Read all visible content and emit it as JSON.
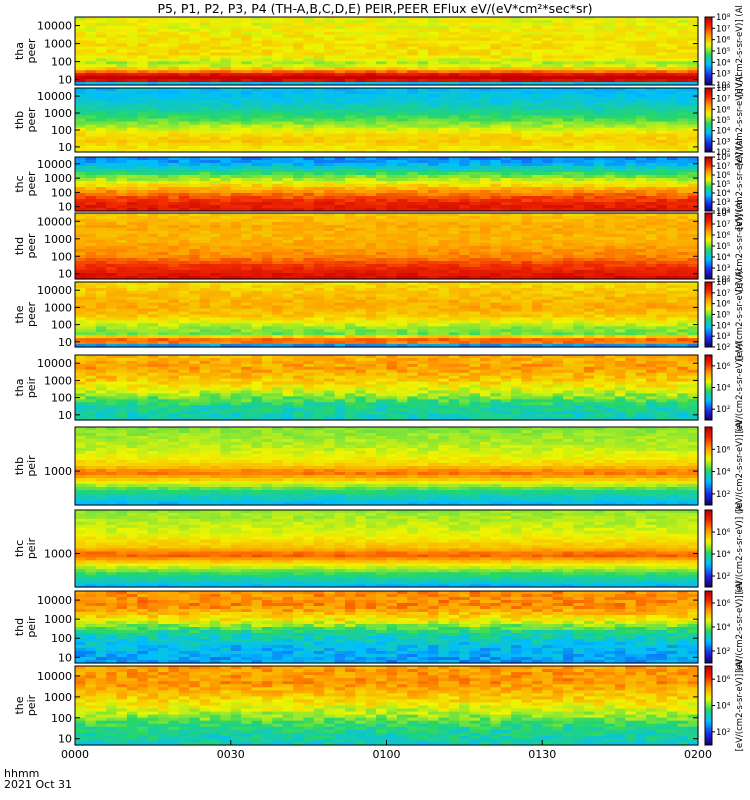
{
  "title": "P5, P1, P2, P3, P4 (TH-A,B,C,D,E) PEIR,PEER EFlux eV/(eV*cm²*sec*sr)",
  "footer": {
    "hhmm_label": "hhmm",
    "date_label": "2021 Oct 31"
  },
  "colors": {
    "low": "#2020c0",
    "mid_low": "#00c0ff",
    "mid": "#30d060",
    "mid_high": "#ffff00",
    "high": "#ff8000",
    "peak": "#e00000"
  },
  "chart_data": {
    "type": "heatmap",
    "x_axis": {
      "ticks": [
        "0000",
        "0030",
        "0100",
        "0130",
        "0200"
      ],
      "range_minutes": [
        0,
        120
      ]
    },
    "panels": [
      {
        "id": "tha-peer",
        "labels": [
          "tha",
          "peer"
        ],
        "yticks": [
          "10",
          "100",
          "1000",
          "10000"
        ],
        "yscale": "log",
        "ylim": [
          5,
          30000
        ],
        "cbar_ticks": [
          "10²",
          "10³",
          "10⁴",
          "10⁵",
          "10⁶",
          "10⁷",
          "10⁸"
        ],
        "cbar_label": "[eV/(cm2-s-sr-eV)] (Al",
        "profile": [
          [
            5,
            2
          ],
          [
            10,
            9
          ],
          [
            40,
            6
          ],
          [
            70,
            5.2
          ],
          [
            200,
            5.8
          ],
          [
            1000,
            5.8
          ],
          [
            10000,
            5.6
          ],
          [
            30000,
            5.6
          ]
        ],
        "cmin": 2,
        "cmax": 8,
        "noise": 0.25
      },
      {
        "id": "thb-peer",
        "labels": [
          "thb",
          "peer"
        ],
        "yticks": [
          "10",
          "100",
          "1000",
          "10000"
        ],
        "yscale": "log",
        "ylim": [
          5,
          30000
        ],
        "cbar_ticks": [
          "10²",
          "10³",
          "10⁴",
          "10⁵",
          "10⁶",
          "10⁷",
          "10⁸"
        ],
        "cbar_label": "[eV/(cm2-s-sr-eV)] (Al",
        "profile": [
          [
            5,
            5.6
          ],
          [
            20,
            6
          ],
          [
            60,
            5.8
          ],
          [
            200,
            5.2
          ],
          [
            1000,
            4.5
          ],
          [
            5000,
            4
          ],
          [
            30000,
            3.8
          ]
        ],
        "cmin": 2,
        "cmax": 8,
        "noise": 0.2
      },
      {
        "id": "thc-peer",
        "labels": [
          "thc",
          "peer"
        ],
        "yticks": [
          "10",
          "100",
          "1000",
          "10000"
        ],
        "yscale": "log",
        "ylim": [
          5,
          30000
        ],
        "cbar_ticks": [
          "10²",
          "10³",
          "10⁴",
          "10⁵",
          "10⁶",
          "10⁷",
          "10⁸"
        ],
        "cbar_label": "[eV/(cm2-s-sr-eV)] (Al",
        "profile": [
          [
            5,
            7.6
          ],
          [
            20,
            7.4
          ],
          [
            100,
            6.6
          ],
          [
            500,
            5.6
          ],
          [
            2000,
            4.8
          ],
          [
            10000,
            3.7
          ],
          [
            30000,
            3.4
          ]
        ],
        "cmin": 2,
        "cmax": 8,
        "noise": 0.25
      },
      {
        "id": "thd-peer",
        "labels": [
          "thd",
          "peer"
        ],
        "yticks": [
          "10",
          "100",
          "1000",
          "10000"
        ],
        "yscale": "log",
        "ylim": [
          5,
          30000
        ],
        "cbar_ticks": [
          "10²",
          "10³",
          "10⁴",
          "10⁵",
          "10⁶",
          "10⁷",
          "10⁸"
        ],
        "cbar_label": "[eV/(cm2-s-sr-eV)] (Al",
        "profile": [
          [
            5,
            7.8
          ],
          [
            30,
            7.2
          ],
          [
            100,
            6.6
          ],
          [
            1000,
            6.2
          ],
          [
            5000,
            6.3
          ],
          [
            30000,
            6
          ]
        ],
        "cmin": 2,
        "cmax": 8,
        "noise": 0.2
      },
      {
        "id": "the-peer",
        "labels": [
          "the",
          "peer"
        ],
        "yticks": [
          "10",
          "100",
          "1000",
          "10000"
        ],
        "yscale": "log",
        "ylim": [
          5,
          30000
        ],
        "cbar_ticks": [
          "10²",
          "10³",
          "10⁴",
          "10⁵",
          "10⁶",
          "10⁷",
          "10⁸"
        ],
        "cbar_label": "[eV/(cm2-s-sr-eV)] (Al",
        "profile": [
          [
            5,
            2
          ],
          [
            10,
            7.5
          ],
          [
            30,
            5
          ],
          [
            70,
            5.2
          ],
          [
            300,
            6
          ],
          [
            1000,
            6.3
          ],
          [
            10000,
            6
          ],
          [
            30000,
            5.8
          ]
        ],
        "cmin": 2,
        "cmax": 8,
        "noise": 0.25
      },
      {
        "id": "tha-peir",
        "labels": [
          "tha",
          "peir"
        ],
        "yticks": [
          "10",
          "100",
          "1000",
          "10000"
        ],
        "yscale": "log",
        "ylim": [
          5,
          30000
        ],
        "cbar_ticks": [
          "10²",
          "10⁴",
          "10⁶"
        ],
        "cbar_label": "[eV/(cm2-s-sr-eV)] (Al",
        "profile": [
          [
            5,
            3.2
          ],
          [
            30,
            3.4
          ],
          [
            200,
            4.4
          ],
          [
            1000,
            5
          ],
          [
            5000,
            5.4
          ],
          [
            30000,
            5.2
          ]
        ],
        "cmin": 1,
        "cmax": 7,
        "noise": 0.35
      },
      {
        "id": "thb-peir",
        "labels": [
          "thb",
          "peir"
        ],
        "yticks": [
          "1000"
        ],
        "yscale": "log",
        "ylim": [
          100,
          20000
        ],
        "cbar_ticks": [
          "10²",
          "10⁴",
          "10⁶"
        ],
        "cbar_label": "[eV/(cm2-s-sr-eV)] (Al",
        "profile": [
          [
            100,
            3
          ],
          [
            250,
            4
          ],
          [
            500,
            5.4
          ],
          [
            900,
            6.6
          ],
          [
            1500,
            5.6
          ],
          [
            4000,
            5
          ],
          [
            20000,
            4.6
          ]
        ],
        "cmin": 1,
        "cmax": 8,
        "noise": 0.2
      },
      {
        "id": "thc-peir",
        "labels": [
          "thc",
          "peir"
        ],
        "yticks": [
          "1000"
        ],
        "yscale": "log",
        "ylim": [
          100,
          20000
        ],
        "cbar_ticks": [
          "10²",
          "10⁴",
          "10⁶"
        ],
        "cbar_label": "[eV/(cm2-s-sr-eV)] (Al",
        "profile": [
          [
            100,
            3
          ],
          [
            250,
            4.2
          ],
          [
            500,
            5.4
          ],
          [
            900,
            6.8
          ],
          [
            1500,
            5.8
          ],
          [
            4000,
            5.1
          ],
          [
            20000,
            4.7
          ]
        ],
        "cmin": 1,
        "cmax": 8,
        "noise": 0.2
      },
      {
        "id": "thd-peir",
        "labels": [
          "thd",
          "peir"
        ],
        "yticks": [
          "10",
          "100",
          "1000",
          "10000"
        ],
        "yscale": "log",
        "ylim": [
          5,
          30000
        ],
        "cbar_ticks": [
          "10²",
          "10⁴",
          "10⁶"
        ],
        "cbar_label": "[eV/(cm2-s-sr-eV)] (Al",
        "profile": [
          [
            5,
            2.6
          ],
          [
            30,
            2.8
          ],
          [
            200,
            3.4
          ],
          [
            1000,
            4.8
          ],
          [
            5000,
            5.6
          ],
          [
            30000,
            5.5
          ]
        ],
        "cmin": 1,
        "cmax": 7,
        "noise": 0.35
      },
      {
        "id": "the-peir",
        "labels": [
          "the",
          "peir"
        ],
        "yticks": [
          "10",
          "100",
          "1000",
          "10000"
        ],
        "yscale": "log",
        "ylim": [
          5,
          30000
        ],
        "cbar_ticks": [
          "10²",
          "10⁴",
          "10⁶"
        ],
        "cbar_label": "[eV/(cm2-s-sr-eV)] (Al",
        "profile": [
          [
            5,
            3.2
          ],
          [
            30,
            3.5
          ],
          [
            200,
            4.4
          ],
          [
            1000,
            5
          ],
          [
            5000,
            5.5
          ],
          [
            30000,
            5.4
          ]
        ],
        "cmin": 1,
        "cmax": 7,
        "noise": 0.35
      }
    ]
  }
}
